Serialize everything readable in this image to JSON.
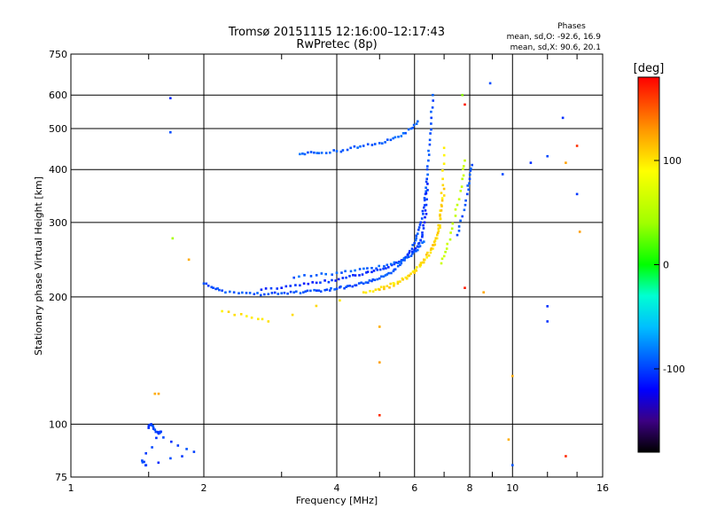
{
  "chart_data": {
    "type": "scatter",
    "title": "Tromsø 20151115 12:16:00–12:17:43",
    "subtitle": "RwPretec (8p)",
    "xlabel": "Frequency [MHz]",
    "ylabel": "Stationary phase Virtual Height [km]",
    "x_scale": "log",
    "y_scale": "log",
    "xlim": [
      1,
      16
    ],
    "ylim": [
      75,
      750
    ],
    "x_ticks": [
      1,
      2,
      4,
      6,
      8,
      10,
      16
    ],
    "x_tick_labels": [
      "1",
      "2",
      "4",
      "6",
      "8",
      "10",
      "16"
    ],
    "x_minor_ticks": [
      1.5,
      3,
      5,
      7,
      9,
      12,
      14
    ],
    "y_ticks": [
      75,
      100,
      200,
      300,
      400,
      500,
      600,
      750
    ],
    "y_tick_labels": [
      "75",
      "100",
      "200",
      "300",
      "400",
      "500",
      "600",
      "750"
    ],
    "grid": true,
    "phase_info": {
      "heading": "Phases",
      "line_o": "mean, sd,O: -92.6, 16.9",
      "line_x": "mean, sd,X:  90.6, 20.1"
    },
    "colorbar": {
      "label": "[deg]",
      "range": [
        -180,
        180
      ],
      "ticks": [
        100,
        0,
        -100
      ],
      "tick_labels": [
        "100",
        "0",
        "-100"
      ],
      "colors": [
        "#ff0000",
        "#ff8000",
        "#ffff00",
        "#80ff00",
        "#00ff00",
        "#00ffc0",
        "#00c0ff",
        "#0060ff",
        "#0000ff",
        "#3000a0",
        "#000000"
      ]
    },
    "series": [
      {
        "mode": "O",
        "phase": -95,
        "x": [
          2.0,
          2.1,
          2.2,
          2.4,
          2.6,
          2.8,
          3.0,
          3.2,
          3.4,
          3.6,
          3.8,
          4.0,
          4.2,
          4.4,
          4.6,
          4.8,
          5.0,
          5.2,
          5.4,
          5.6,
          5.8,
          6.0,
          6.1,
          6.2,
          6.3,
          6.35,
          6.4,
          6.45,
          6.5,
          6.55,
          6.6
        ],
        "y": [
          215,
          210,
          207,
          204,
          203,
          203,
          204,
          205,
          206,
          207,
          208,
          209,
          211,
          213,
          215,
          218,
          221,
          226,
          232,
          240,
          252,
          268,
          282,
          300,
          325,
          350,
          380,
          420,
          470,
          530,
          600
        ]
      },
      {
        "mode": "O",
        "phase": -105,
        "x": [
          2.7,
          3.0,
          3.3,
          3.6,
          3.9,
          4.2,
          4.5,
          4.8,
          5.1,
          5.4,
          5.7,
          6.0,
          6.15,
          6.25,
          6.32,
          6.38,
          6.42
        ],
        "y": [
          208,
          210,
          213,
          216,
          219,
          222,
          225,
          229,
          233,
          239,
          247,
          258,
          268,
          280,
          300,
          330,
          370
        ]
      },
      {
        "mode": "O",
        "phase": -90,
        "x": [
          3.2,
          3.6,
          4.0,
          4.4,
          4.8,
          5.2,
          5.6,
          5.9,
          6.1,
          6.3
        ],
        "y": [
          222,
          225,
          228,
          231,
          234,
          238,
          243,
          250,
          258,
          270
        ]
      },
      {
        "mode": "O",
        "phase": -90,
        "x": [
          3.3,
          3.5,
          3.7,
          4.0,
          4.3,
          4.6,
          5.0,
          5.3,
          5.6,
          5.9,
          6.1
        ],
        "y": [
          435,
          440,
          438,
          442,
          450,
          455,
          462,
          470,
          480,
          500,
          520
        ]
      },
      {
        "mode": "X",
        "phase": 100,
        "x": [
          2.2,
          2.5,
          2.8,
          4.6,
          4.9,
          5.2,
          5.5,
          5.8,
          6.0,
          6.2,
          6.4,
          6.6,
          6.75,
          6.85,
          6.9,
          6.95,
          7.0
        ],
        "y": [
          185,
          180,
          175,
          205,
          208,
          212,
          217,
          224,
          230,
          238,
          248,
          260,
          275,
          295,
          330,
          380,
          450
        ]
      },
      {
        "mode": "X",
        "phase": 110,
        "x": [
          5.0,
          5.5,
          6.0,
          6.3,
          6.6,
          6.8,
          6.9,
          7.0
        ],
        "y": [
          208,
          215,
          228,
          245,
          265,
          290,
          320,
          360
        ]
      },
      {
        "mode": "X",
        "phase": 60,
        "x": [
          6.9,
          7.1,
          7.3,
          7.5,
          7.7,
          7.8
        ],
        "y": [
          240,
          260,
          290,
          330,
          380,
          420
        ]
      },
      {
        "mode": "O",
        "phase": -95,
        "x": [
          7.5,
          7.7,
          7.9,
          8.0,
          8.1
        ],
        "y": [
          280,
          310,
          350,
          380,
          410
        ]
      },
      {
        "mode": "O",
        "phase": -100,
        "x": [
          1.5,
          1.52,
          1.55,
          1.58,
          1.6,
          1.45,
          1.48,
          1.9,
          1.62
        ],
        "y": [
          98,
          100,
          97,
          95,
          96,
          82,
          80,
          86,
          93
        ]
      },
      {
        "mode": "scatter",
        "phase": -100,
        "x": [
          1.68,
          1.68,
          8.9,
          11.0,
          12.0,
          12.0,
          12.0,
          13.0,
          14.0,
          10.0,
          9.5
        ],
        "y": [
          590,
          490,
          640,
          415,
          430,
          190,
          175,
          530,
          350,
          80,
          390
        ]
      },
      {
        "mode": "scatter",
        "phase": 120,
        "x": [
          1.55,
          1.58,
          1.85,
          5.0,
          5.0,
          10.0,
          9.8,
          13.2,
          8.6,
          14.2
        ],
        "y": [
          118,
          118,
          245,
          170,
          140,
          130,
          92,
          415,
          205,
          285
        ]
      },
      {
        "mode": "scatter",
        "phase": 170,
        "x": [
          5.0,
          7.8,
          13.2,
          14.0,
          7.8
        ],
        "y": [
          105,
          210,
          84,
          455,
          570
        ]
      },
      {
        "mode": "scatter",
        "phase": 40,
        "x": [
          1.7,
          7.7
        ],
        "y": [
          275,
          600
        ]
      }
    ]
  }
}
